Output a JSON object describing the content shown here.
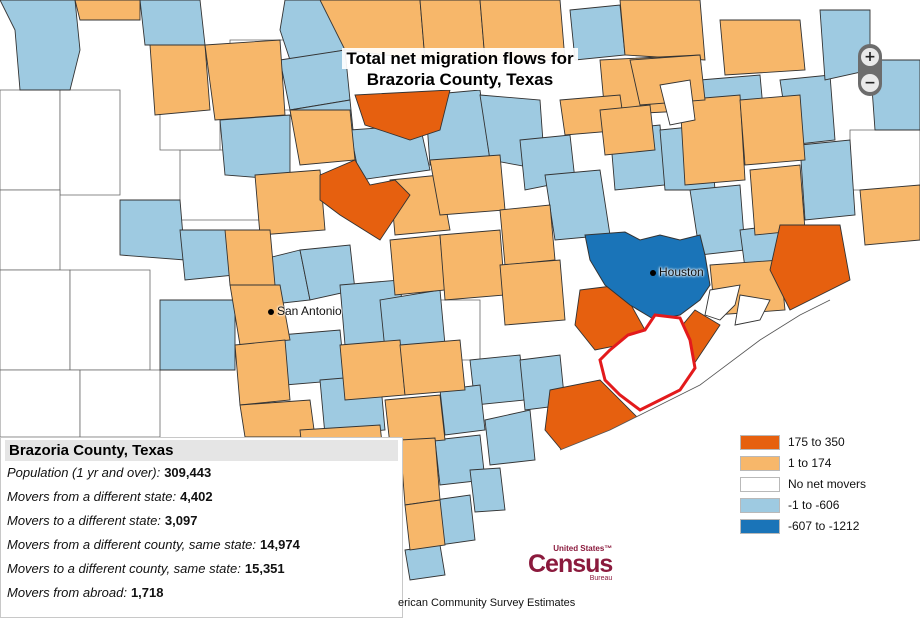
{
  "map": {
    "title_line1": "Total net migration flows for",
    "title_line2": "Brazoria County, Texas",
    "colors": {
      "orange_dark": "#e6600f",
      "orange_light": "#f7b76a",
      "white": "#ffffff",
      "blue_light": "#9ecae1",
      "blue_dark": "#1a74b8",
      "border": "#333333",
      "highlight": "#e31a1c"
    },
    "zoom": {
      "in_icon": "+",
      "out_icon": "−"
    },
    "cities": [
      {
        "name": "Houston"
      },
      {
        "name": "San Antonio"
      }
    ]
  },
  "info_panel": {
    "title": "Brazoria County, Texas",
    "rows": [
      {
        "label": "Population (1 yr and over):",
        "value": "309,443"
      },
      {
        "label": "Movers from a different state:",
        "value": "4,402"
      },
      {
        "label": "Movers to a different state:",
        "value": "3,097"
      },
      {
        "label": "Movers from a different county, same state:",
        "value": "14,974"
      },
      {
        "label": "Movers to a different county, same state:",
        "value": "15,351"
      },
      {
        "label": "Movers from abroad:",
        "value": "1,718"
      }
    ]
  },
  "legend": [
    {
      "label": "175 to 350",
      "color": "#e6600f"
    },
    {
      "label": "1 to 174",
      "color": "#f7b76a"
    },
    {
      "label": "No net movers",
      "color": "#ffffff"
    },
    {
      "label": "-1 to -606",
      "color": "#9ecae1"
    },
    {
      "label": "-607 to -1212",
      "color": "#1a74b8"
    }
  ],
  "logo": {
    "top": "United States™",
    "main": "Census",
    "bottom": "Bureau"
  },
  "source_text": "erican Community Survey Estimates"
}
